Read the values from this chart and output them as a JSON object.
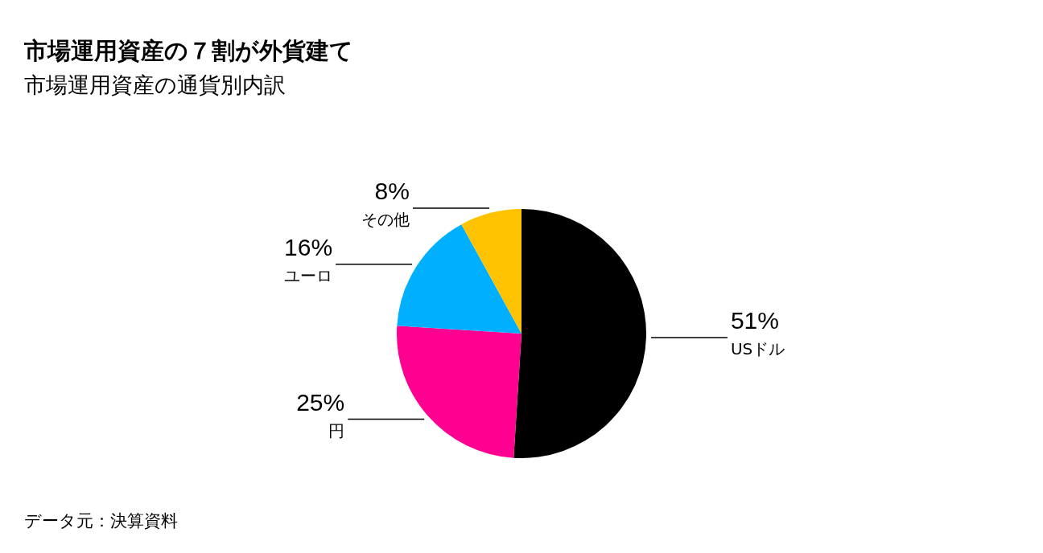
{
  "chart_data": {
    "type": "pie",
    "title": "市場運用資産の７割が外貨建て",
    "subtitle": "市場運用資産の通貨別内訳",
    "categories": [
      "USドル",
      "円",
      "ユーロ",
      "その他"
    ],
    "values": [
      51,
      25,
      16,
      8
    ],
    "colors": [
      "#000000",
      "#ff0090",
      "#00b0ff",
      "#ffc200"
    ],
    "value_labels": [
      "51%",
      "25%",
      "16%",
      "8%"
    ],
    "annotations": [
      "データ元：決算資料"
    ]
  }
}
